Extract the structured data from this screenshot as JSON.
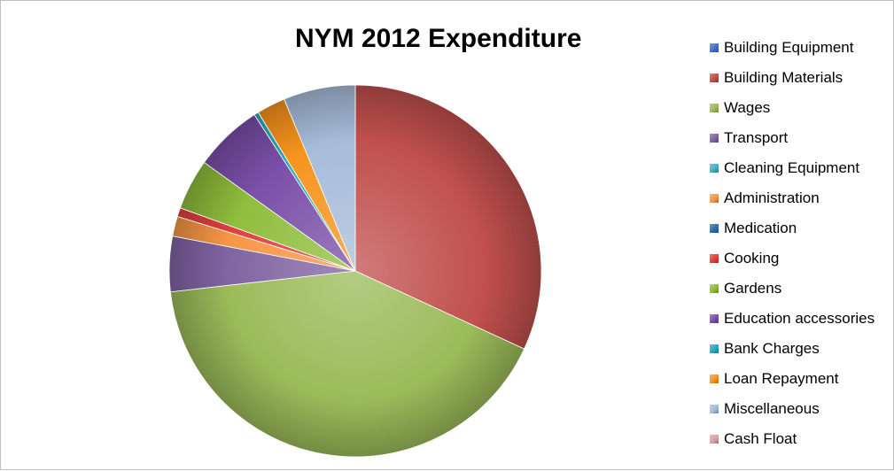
{
  "chart_data": {
    "type": "pie",
    "title": "NYM 2012 Expenditure",
    "legend_position": "right",
    "style": "3d-shaded",
    "slices": [
      {
        "label": "Building Equipment",
        "value": 0.0,
        "color": "#4472c4"
      },
      {
        "label": "Building Materials",
        "value": 33.2,
        "color": "#c0504d"
      },
      {
        "label": "Wages",
        "value": 43.0,
        "color": "#9bbb59"
      },
      {
        "label": "Transport",
        "value": 5.0,
        "color": "#8064a2"
      },
      {
        "label": "Cleaning Equipment",
        "value": 0.0,
        "color": "#4bacc6"
      },
      {
        "label": "Administration",
        "value": 1.8,
        "color": "#f79646"
      },
      {
        "label": "Medication",
        "value": 0.0,
        "color": "#2c70b0"
      },
      {
        "label": "Cooking",
        "value": 0.8,
        "color": "#e0403c"
      },
      {
        "label": "Gardens",
        "value": 4.6,
        "color": "#8fbd3c"
      },
      {
        "label": "Education accessories",
        "value": 6.2,
        "color": "#7a4fa8"
      },
      {
        "label": "Bank Charges",
        "value": 0.4,
        "color": "#2aa8c0"
      },
      {
        "label": "Loan Repayment",
        "value": 2.6,
        "color": "#f7941d"
      },
      {
        "label": "Miscellaneous",
        "value": 6.5,
        "color": "#a7bcd9"
      },
      {
        "label": "Cash Float",
        "value": 0.0,
        "color": "#d9a3a3"
      }
    ]
  }
}
